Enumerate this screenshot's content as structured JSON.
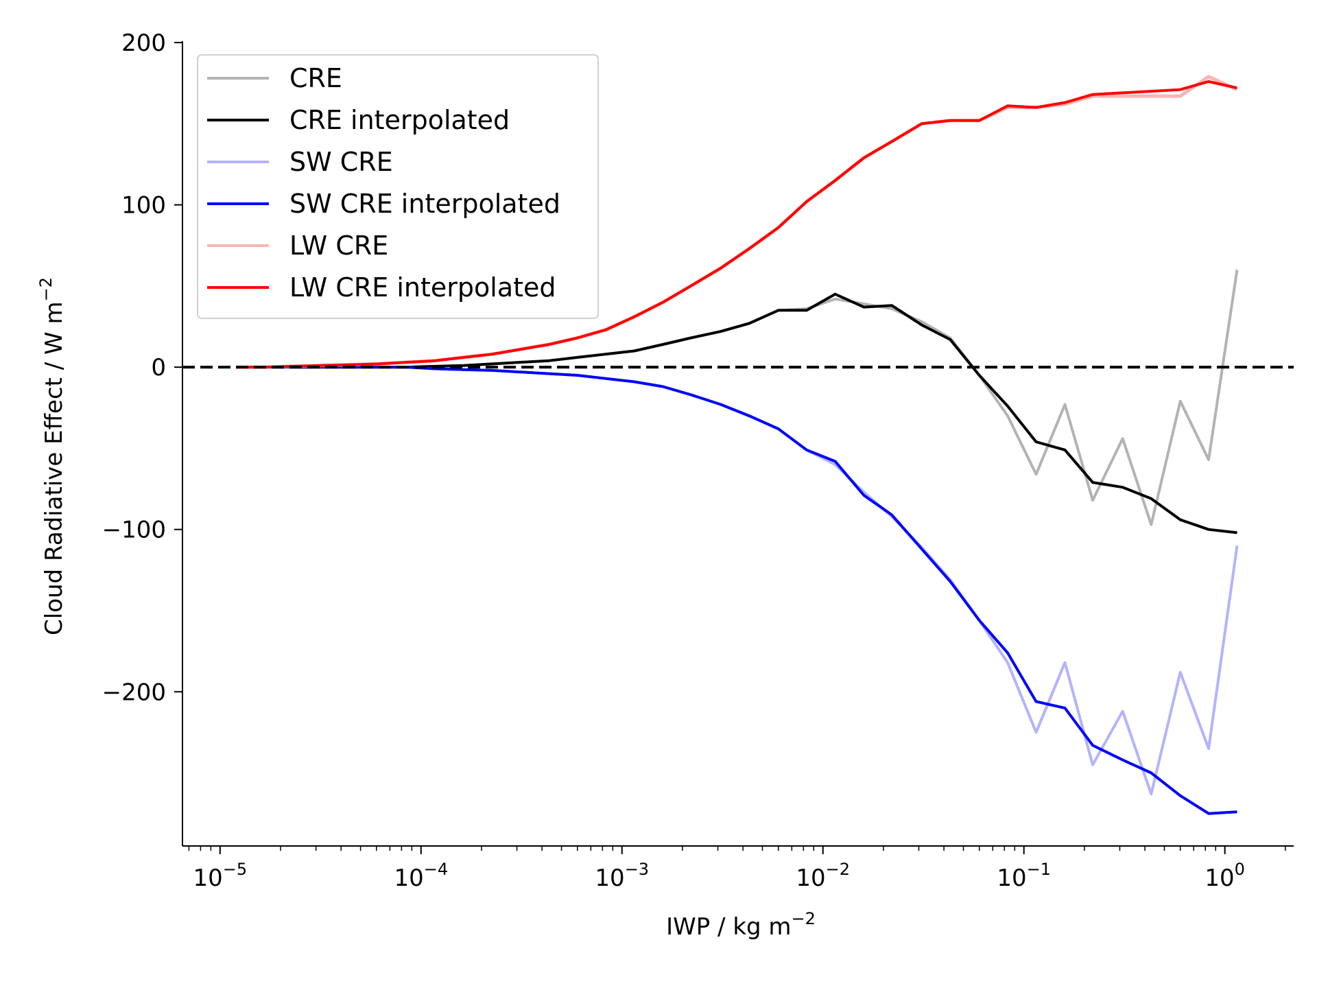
{
  "chart_data": {
    "type": "line",
    "xlabel": "IWP / kg m",
    "xlabel_sup": "−2",
    "ylabel": "Cloud Radiative Effect / W m",
    "ylabel_sup": "−2",
    "xscale": "log",
    "xlim": [
      6.5e-06,
      2.2
    ],
    "ylim": [
      -295,
      200
    ],
    "x_ticks": [
      {
        "mant": "10",
        "exp": "−5",
        "value": 1e-05
      },
      {
        "mant": "10",
        "exp": "−4",
        "value": 0.0001
      },
      {
        "mant": "10",
        "exp": "−3",
        "value": 0.001
      },
      {
        "mant": "10",
        "exp": "−2",
        "value": 0.01
      },
      {
        "mant": "10",
        "exp": "−1",
        "value": 0.1
      },
      {
        "mant": "10",
        "exp": "0",
        "value": 1
      }
    ],
    "y_ticks": [
      {
        "label": "200",
        "value": 200
      },
      {
        "label": "100",
        "value": 100
      },
      {
        "label": "0",
        "value": 0
      },
      {
        "label": "−100",
        "value": -100
      },
      {
        "label": "−200",
        "value": -200
      }
    ],
    "grid": false,
    "legend_position": "top-left",
    "reference_line": {
      "y": 0,
      "style": "dashed",
      "color": "#000000"
    },
    "x": [
      1.2e-05,
      1.67e-05,
      2.3e-05,
      3.2e-05,
      4.4e-05,
      6.1e-05,
      8.5e-05,
      0.000118,
      0.000163,
      0.000226,
      0.000313,
      0.000434,
      0.0006,
      0.00083,
      0.00115,
      0.0016,
      0.0022,
      0.0031,
      0.0043,
      0.006,
      0.0083,
      0.0115,
      0.016,
      0.022,
      0.031,
      0.043,
      0.06,
      0.083,
      0.115,
      0.16,
      0.22,
      0.31,
      0.43,
      0.6,
      0.83,
      1.15
    ],
    "series": [
      {
        "name": "CRE",
        "color": "#b3b3b3",
        "width": 4,
        "values": [
          0,
          0,
          0,
          0,
          0,
          0,
          0,
          0.5,
          1,
          2,
          3,
          4,
          6,
          8,
          10,
          14,
          18,
          22,
          27,
          35,
          36,
          42,
          39,
          36,
          28,
          18,
          -5,
          -30,
          -66,
          -23,
          -82,
          -44,
          -97,
          -21,
          -57,
          60
        ]
      },
      {
        "name": "CRE interpolated",
        "color": "#000000",
        "width": 4,
        "values": [
          0,
          0,
          0,
          0,
          0,
          0,
          0,
          0.5,
          1,
          2,
          3,
          4,
          6,
          8,
          10,
          14,
          18,
          22,
          27,
          35,
          35,
          45,
          37,
          38,
          26,
          17,
          -5,
          -24,
          -46,
          -51,
          -71,
          -74,
          -81,
          -94,
          -100,
          -102
        ]
      },
      {
        "name": "SW CRE",
        "color": "#b3b3ff",
        "width": 4,
        "values": [
          0,
          0,
          0,
          0,
          0,
          0,
          0,
          -1,
          -1.5,
          -2,
          -3,
          -4,
          -5,
          -7,
          -9,
          -12,
          -17,
          -23,
          -30,
          -38,
          -51,
          -60,
          -77,
          -92,
          -111,
          -131,
          -156,
          -182,
          -225,
          -182,
          -245,
          -212,
          -263,
          -188,
          -235,
          -110
        ]
      },
      {
        "name": "SW CRE interpolated",
        "color": "#0000ff",
        "width": 4,
        "values": [
          0,
          0,
          0,
          0,
          0,
          0,
          0,
          -1,
          -1.5,
          -2,
          -3,
          -4,
          -5,
          -7,
          -9,
          -12,
          -17,
          -23,
          -30,
          -38,
          -51,
          -58,
          -79,
          -91,
          -112,
          -132,
          -156,
          -176,
          -206,
          -210,
          -233,
          -242,
          -250,
          -264,
          -275,
          -274
        ]
      },
      {
        "name": "LW CRE",
        "color": "#ffb3b3",
        "width": 5,
        "values": [
          0,
          0,
          0.5,
          1,
          1.5,
          2,
          3,
          4,
          6,
          8,
          11,
          14,
          18,
          23,
          31,
          40,
          50,
          61,
          73,
          86,
          102,
          115,
          129,
          139,
          150,
          152,
          152,
          160,
          160,
          162,
          167,
          167,
          167,
          167,
          179,
          171
        ]
      },
      {
        "name": "LW CRE interpolated",
        "color": "#ff0000",
        "width": 4,
        "values": [
          0,
          0,
          0.5,
          1,
          1.5,
          2,
          3,
          4,
          6,
          8,
          11,
          14,
          18,
          23,
          31,
          40,
          50,
          61,
          73,
          86,
          102,
          115,
          129,
          139,
          150,
          152,
          152,
          161,
          160,
          163,
          168,
          169,
          170,
          171,
          176,
          172
        ]
      }
    ]
  }
}
